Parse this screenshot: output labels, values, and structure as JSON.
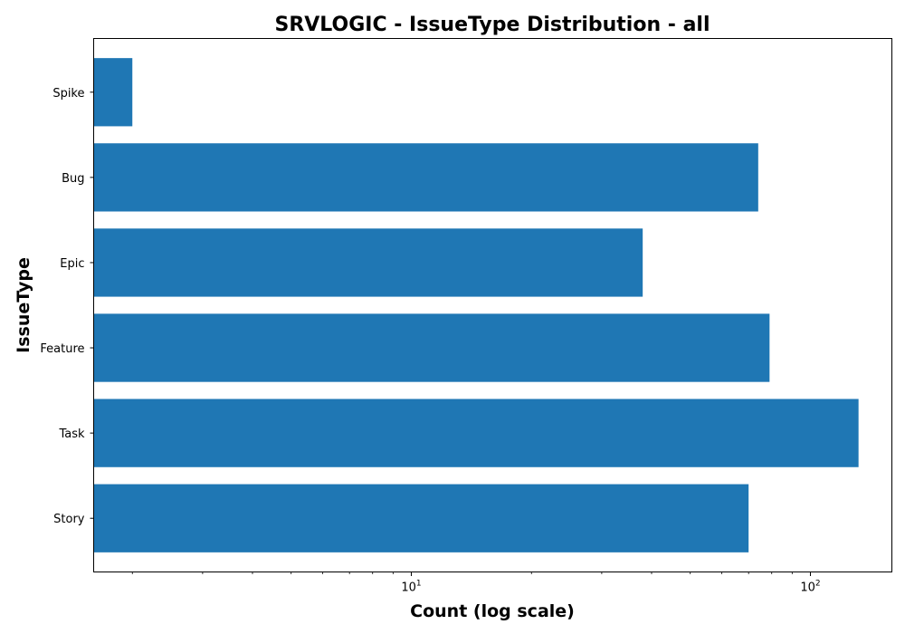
{
  "chart_data": {
    "type": "bar",
    "orientation": "horizontal",
    "title": "SRVLOGIC - IssueType Distribution - all",
    "xlabel": "Count (log scale)",
    "ylabel": "IssueType",
    "x_scale": "log",
    "xlim": [
      1.6,
      160
    ],
    "categories": [
      "Story",
      "Task",
      "Feature",
      "Epic",
      "Bug",
      "Spike"
    ],
    "values": [
      70,
      132,
      79,
      38,
      74,
      2
    ],
    "bar_color": "#1f77b4",
    "grid": false,
    "legend": "none",
    "x_major_ticks": [
      {
        "value": 10,
        "base": "10",
        "exp": "1"
      },
      {
        "value": 100,
        "base": "10",
        "exp": "2"
      }
    ],
    "x_minor_ticks": [
      2,
      3,
      4,
      5,
      6,
      7,
      8,
      9,
      20,
      30,
      40,
      50,
      60,
      70,
      80,
      90
    ]
  }
}
